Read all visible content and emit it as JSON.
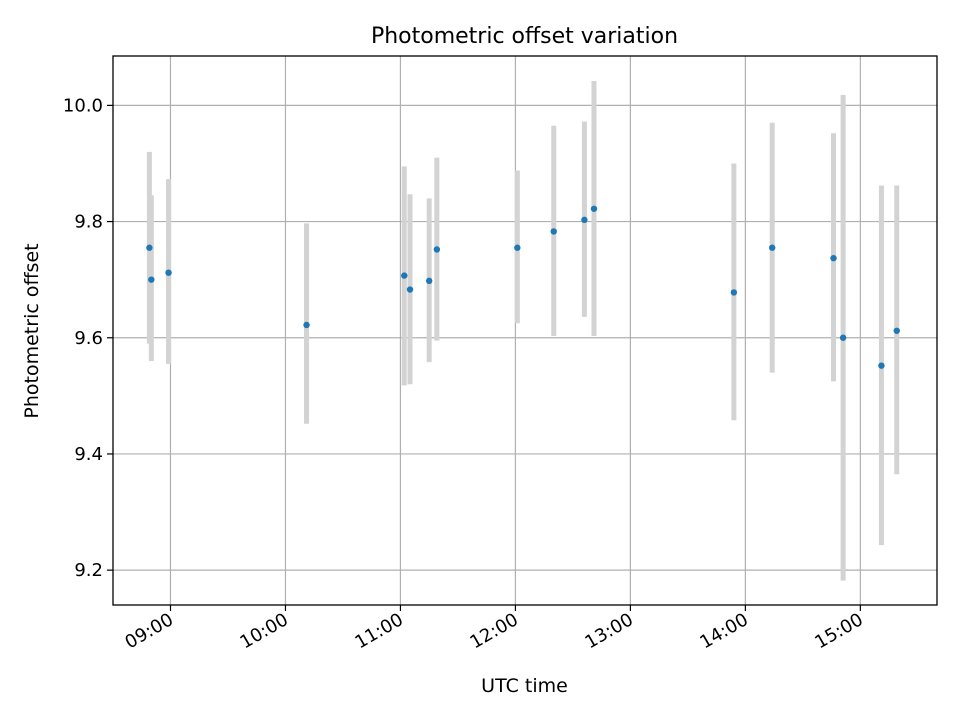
{
  "chart_data": {
    "type": "scatter",
    "title": "Photometric offset variation",
    "xlabel": "UTC time",
    "ylabel": "Photometric offset",
    "x_axis_type": "time",
    "xlim": [
      "08:30",
      "15:40"
    ],
    "ylim": [
      9.14,
      10.085
    ],
    "x_ticks": [
      "09:00",
      "10:00",
      "11:00",
      "12:00",
      "13:00",
      "14:00",
      "15:00"
    ],
    "y_ticks": [
      9.2,
      9.4,
      9.6,
      9.8,
      10.0
    ],
    "y_tick_labels": [
      "9.2",
      "9.4",
      "9.6",
      "9.8",
      "10.0"
    ],
    "grid": true,
    "legend": "none",
    "colors": {
      "points": "#1f77b4",
      "errorbars": "#d3d3d3"
    },
    "points": [
      {
        "x": "08:49",
        "y": 9.755,
        "yerr_low": 9.59,
        "yerr_high": 9.92
      },
      {
        "x": "08:50",
        "y": 9.7,
        "yerr_low": 9.56,
        "yerr_high": 9.845
      },
      {
        "x": "08:59",
        "y": 9.712,
        "yerr_low": 9.555,
        "yerr_high": 9.873
      },
      {
        "x": "10:11",
        "y": 9.622,
        "yerr_low": 9.452,
        "yerr_high": 9.797
      },
      {
        "x": "11:02",
        "y": 9.707,
        "yerr_low": 9.518,
        "yerr_high": 9.895
      },
      {
        "x": "11:05",
        "y": 9.683,
        "yerr_low": 9.52,
        "yerr_high": 9.847
      },
      {
        "x": "11:15",
        "y": 9.698,
        "yerr_low": 9.558,
        "yerr_high": 9.84
      },
      {
        "x": "11:19",
        "y": 9.752,
        "yerr_low": 9.595,
        "yerr_high": 9.91
      },
      {
        "x": "12:01",
        "y": 9.755,
        "yerr_low": 9.625,
        "yerr_high": 9.888
      },
      {
        "x": "12:20",
        "y": 9.783,
        "yerr_low": 9.603,
        "yerr_high": 9.965
      },
      {
        "x": "12:36",
        "y": 9.803,
        "yerr_low": 9.636,
        "yerr_high": 9.972
      },
      {
        "x": "12:41",
        "y": 9.822,
        "yerr_low": 9.603,
        "yerr_high": 10.042
      },
      {
        "x": "13:54",
        "y": 9.678,
        "yerr_low": 9.458,
        "yerr_high": 9.9
      },
      {
        "x": "14:14",
        "y": 9.755,
        "yerr_low": 9.54,
        "yerr_high": 9.97
      },
      {
        "x": "14:46",
        "y": 9.737,
        "yerr_low": 9.525,
        "yerr_high": 9.952
      },
      {
        "x": "14:51",
        "y": 9.6,
        "yerr_low": 9.182,
        "yerr_high": 10.018
      },
      {
        "x": "15:11",
        "y": 9.552,
        "yerr_low": 9.243,
        "yerr_high": 9.862
      },
      {
        "x": "15:19",
        "y": 9.612,
        "yerr_low": 9.365,
        "yerr_high": 9.862
      }
    ]
  }
}
